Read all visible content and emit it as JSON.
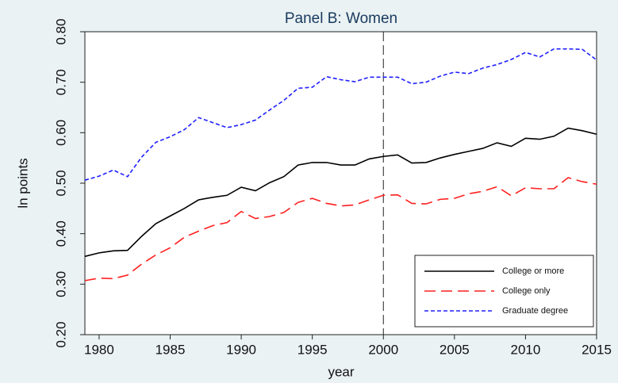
{
  "chart_data": {
    "type": "line",
    "title": "Panel B: Women",
    "xlabel": "year",
    "ylabel": "ln points",
    "x": [
      1979,
      1980,
      1981,
      1982,
      1983,
      1984,
      1985,
      1986,
      1987,
      1988,
      1989,
      1990,
      1991,
      1992,
      1993,
      1994,
      1995,
      1996,
      1997,
      1998,
      1999,
      2000,
      2001,
      2002,
      2003,
      2004,
      2005,
      2006,
      2007,
      2008,
      2009,
      2010,
      2011,
      2012,
      2013,
      2014,
      2015
    ],
    "series": [
      {
        "name": "College or more",
        "color": "#000000",
        "dash": "solid",
        "values": [
          0.355,
          0.362,
          0.366,
          0.367,
          0.395,
          0.42,
          0.435,
          0.45,
          0.467,
          0.472,
          0.476,
          0.492,
          0.485,
          0.501,
          0.513,
          0.536,
          0.541,
          0.541,
          0.536,
          0.536,
          0.548,
          0.553,
          0.556,
          0.54,
          0.541,
          0.55,
          0.557,
          0.563,
          0.569,
          0.58,
          0.573,
          0.589,
          0.587,
          0.593,
          0.609,
          0.604,
          0.597
        ]
      },
      {
        "name": "College only",
        "color": "#ff2020",
        "dash": "long",
        "values": [
          0.307,
          0.312,
          0.311,
          0.318,
          0.34,
          0.358,
          0.372,
          0.393,
          0.405,
          0.416,
          0.422,
          0.444,
          0.43,
          0.434,
          0.442,
          0.462,
          0.47,
          0.46,
          0.455,
          0.457,
          0.467,
          0.476,
          0.477,
          0.46,
          0.459,
          0.468,
          0.47,
          0.479,
          0.484,
          0.493,
          0.475,
          0.491,
          0.489,
          0.489,
          0.511,
          0.503,
          0.498
        ]
      },
      {
        "name": "Graduate degree",
        "color": "#2020ff",
        "dash": "short",
        "values": [
          0.506,
          0.514,
          0.526,
          0.513,
          0.552,
          0.581,
          0.592,
          0.606,
          0.63,
          0.62,
          0.61,
          0.616,
          0.625,
          0.645,
          0.664,
          0.688,
          0.69,
          0.711,
          0.705,
          0.701,
          0.71,
          0.71,
          0.71,
          0.697,
          0.7,
          0.712,
          0.72,
          0.717,
          0.728,
          0.735,
          0.745,
          0.759,
          0.75,
          0.766,
          0.766,
          0.765,
          0.744
        ]
      }
    ],
    "xlim": [
      1979,
      2015
    ],
    "xticks": [
      1980,
      1985,
      1990,
      1995,
      2000,
      2005,
      2010,
      2015
    ],
    "ylim": [
      0.2,
      0.8
    ],
    "yticks": [
      {
        "value": 0.2,
        "label": "0.20"
      },
      {
        "value": 0.3,
        "label": "0.30"
      },
      {
        "value": 0.4,
        "label": "0.40"
      },
      {
        "value": 0.5,
        "label": "0.50"
      },
      {
        "value": 0.6,
        "label": "0.60"
      },
      {
        "value": 0.7,
        "label": "0.70"
      },
      {
        "value": 0.8,
        "label": "0.80"
      }
    ],
    "vline": 2000,
    "legend": "lower right",
    "grid": false
  }
}
